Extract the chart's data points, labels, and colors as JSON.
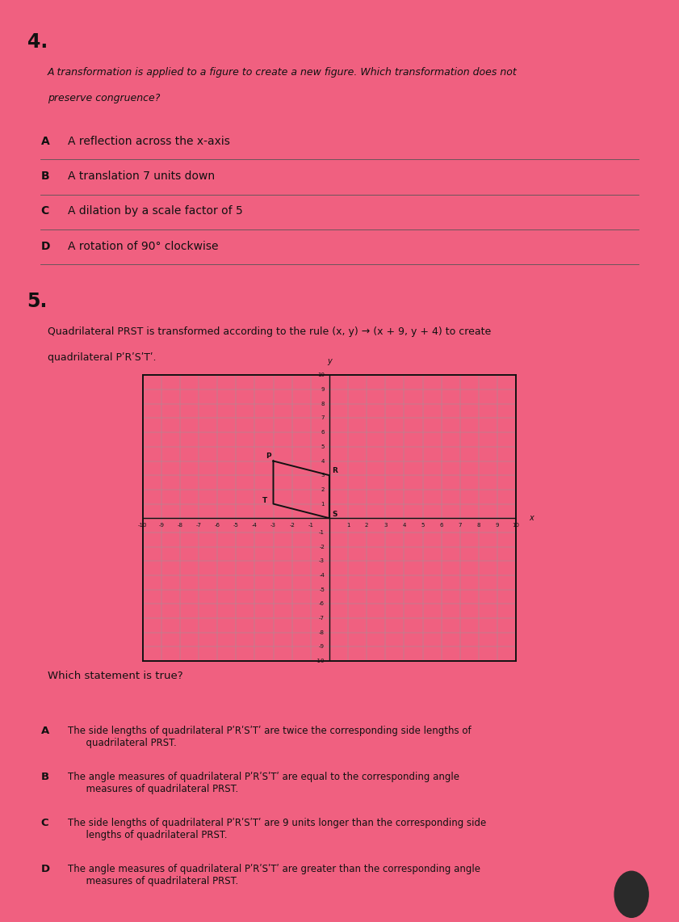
{
  "background_color": "#F06080",
  "q4_number": "4.",
  "q4_text_line1": "A transformation is applied to a figure to create a new figure. Which transformation does not",
  "q4_text_line2": "preserve congruence?",
  "q4_options": [
    [
      "A",
      "A reflection across the x-axis"
    ],
    [
      "B",
      "A translation 7 units down"
    ],
    [
      "C",
      "A dilation by a scale factor of 5"
    ],
    [
      "D",
      "A rotation of 90° clockwise"
    ]
  ],
  "q5_number": "5.",
  "q5_text_line1": "Quadrilateral PRST is transformed according to the rule (x, y) → (x + 9, y + 4) to create",
  "q5_text_line2": "quadrilateral PʹRʹSʹTʹ.",
  "graph_xlim": [
    -10,
    10
  ],
  "graph_ylim": [
    -10,
    10
  ],
  "quad_P": [
    -3,
    4
  ],
  "quad_R": [
    0,
    3
  ],
  "quad_S": [
    0,
    0
  ],
  "quad_T": [
    -3,
    1
  ],
  "quad_color": "#111111",
  "q5_question": "Which statement is true?",
  "q5_options": [
    [
      "A",
      "The side lengths of quadrilateral PʹRʹSʹTʹ are twice the corresponding side lengths of\n      quadrilateral PRST."
    ],
    [
      "B",
      "The angle measures of quadrilateral PʹRʹSʹTʹ are equal to the corresponding angle\n      measures of quadrilateral PRST."
    ],
    [
      "C",
      "The side lengths of quadrilateral PʹRʹSʹTʹ are 9 units longer than the corresponding side\n      lengths of quadrilateral PRST."
    ],
    [
      "D",
      "The angle measures of quadrilateral PʹRʹSʹTʹ are greater than the corresponding angle\n      measures of quadrilateral PRST."
    ]
  ],
  "text_color": "#111111",
  "line_color": "#444444"
}
